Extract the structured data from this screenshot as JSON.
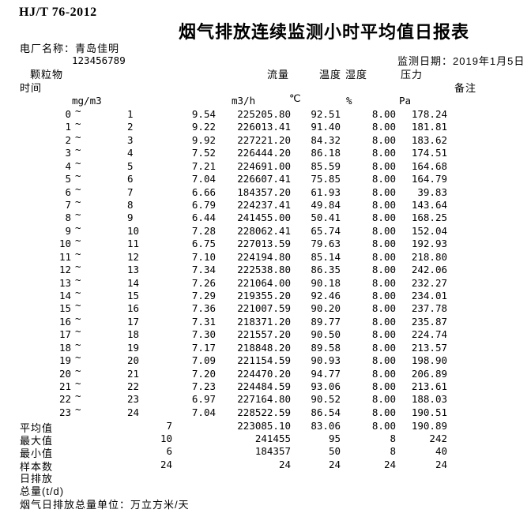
{
  "header": {
    "standard_code": "HJ/T 76-2012",
    "title": "烟气排放连续监测小时平均值日报表",
    "plant_name_label": "电厂名称：",
    "plant_name": "青岛佳明",
    "stray_mark": "`",
    "plant_code": "123456789",
    "monitor_date_label": "监测日期：",
    "monitor_date": "2019年1月5日"
  },
  "table": {
    "col_time": "时间",
    "col_pm": "颗粒物",
    "col_flow": "流量",
    "col_temp": "温度",
    "col_hum": "湿度",
    "col_press": "压力",
    "col_note": "备注",
    "unit_pm": "mg/m3",
    "unit_flow": "m3/h",
    "unit_temp": "℃",
    "unit_hum": "%",
    "unit_press": "Pa",
    "tilde": "~",
    "rows": [
      {
        "from": "0",
        "to": "1",
        "pm": "9.54",
        "flow": "225205.80",
        "temp": "92.51",
        "hum": "8.00",
        "press": "178.24"
      },
      {
        "from": "1",
        "to": "2",
        "pm": "9.22",
        "flow": "226013.41",
        "temp": "91.40",
        "hum": "8.00",
        "press": "181.81"
      },
      {
        "from": "2",
        "to": "3",
        "pm": "9.92",
        "flow": "227221.20",
        "temp": "84.32",
        "hum": "8.00",
        "press": "183.62"
      },
      {
        "from": "3",
        "to": "4",
        "pm": "7.52",
        "flow": "226444.20",
        "temp": "86.18",
        "hum": "8.00",
        "press": "174.51"
      },
      {
        "from": "4",
        "to": "5",
        "pm": "7.21",
        "flow": "224691.00",
        "temp": "85.59",
        "hum": "8.00",
        "press": "164.68"
      },
      {
        "from": "5",
        "to": "6",
        "pm": "7.04",
        "flow": "226607.41",
        "temp": "75.85",
        "hum": "8.00",
        "press": "164.79"
      },
      {
        "from": "6",
        "to": "7",
        "pm": "6.66",
        "flow": "184357.20",
        "temp": "61.93",
        "hum": "8.00",
        "press": "39.83"
      },
      {
        "from": "7",
        "to": "8",
        "pm": "6.79",
        "flow": "224237.41",
        "temp": "49.84",
        "hum": "8.00",
        "press": "143.64"
      },
      {
        "from": "8",
        "to": "9",
        "pm": "6.44",
        "flow": "241455.00",
        "temp": "50.41",
        "hum": "8.00",
        "press": "168.25"
      },
      {
        "from": "9",
        "to": "10",
        "pm": "7.28",
        "flow": "228062.41",
        "temp": "65.74",
        "hum": "8.00",
        "press": "152.04"
      },
      {
        "from": "10",
        "to": "11",
        "pm": "6.75",
        "flow": "227013.59",
        "temp": "79.63",
        "hum": "8.00",
        "press": "192.93"
      },
      {
        "from": "11",
        "to": "12",
        "pm": "7.10",
        "flow": "224194.80",
        "temp": "85.14",
        "hum": "8.00",
        "press": "218.80"
      },
      {
        "from": "12",
        "to": "13",
        "pm": "7.34",
        "flow": "222538.80",
        "temp": "86.35",
        "hum": "8.00",
        "press": "242.06"
      },
      {
        "from": "13",
        "to": "14",
        "pm": "7.26",
        "flow": "221064.00",
        "temp": "90.18",
        "hum": "8.00",
        "press": "232.27"
      },
      {
        "from": "14",
        "to": "15",
        "pm": "7.29",
        "flow": "219355.20",
        "temp": "92.46",
        "hum": "8.00",
        "press": "234.01"
      },
      {
        "from": "15",
        "to": "16",
        "pm": "7.36",
        "flow": "221007.59",
        "temp": "90.20",
        "hum": "8.00",
        "press": "237.78"
      },
      {
        "from": "16",
        "to": "17",
        "pm": "7.31",
        "flow": "218371.20",
        "temp": "89.77",
        "hum": "8.00",
        "press": "235.87"
      },
      {
        "from": "17",
        "to": "18",
        "pm": "7.30",
        "flow": "221557.20",
        "temp": "90.50",
        "hum": "8.00",
        "press": "224.74"
      },
      {
        "from": "18",
        "to": "19",
        "pm": "7.17",
        "flow": "218848.20",
        "temp": "89.58",
        "hum": "8.00",
        "press": "213.57"
      },
      {
        "from": "19",
        "to": "20",
        "pm": "7.09",
        "flow": "221154.59",
        "temp": "90.93",
        "hum": "8.00",
        "press": "198.90"
      },
      {
        "from": "20",
        "to": "21",
        "pm": "7.20",
        "flow": "224470.20",
        "temp": "94.77",
        "hum": "8.00",
        "press": "206.89"
      },
      {
        "from": "21",
        "to": "22",
        "pm": "7.23",
        "flow": "224484.59",
        "temp": "93.06",
        "hum": "8.00",
        "press": "213.61"
      },
      {
        "from": "22",
        "to": "23",
        "pm": "6.97",
        "flow": "227164.80",
        "temp": "90.52",
        "hum": "8.00",
        "press": "188.03"
      },
      {
        "from": "23",
        "to": "24",
        "pm": "7.04",
        "flow": "228522.59",
        "temp": "86.54",
        "hum": "8.00",
        "press": "190.51"
      }
    ],
    "summary_rows": [
      {
        "label": "平均值",
        "pm": "7",
        "flow": "223085.10",
        "temp": "83.06",
        "hum": "8.00",
        "press": "190.89"
      },
      {
        "label": "最大值",
        "pm": "10",
        "flow": "241455",
        "temp": "95",
        "hum": "8",
        "press": "242"
      },
      {
        "label": "最小值",
        "pm": "6",
        "flow": "184357",
        "temp": "50",
        "hum": "8",
        "press": "40"
      },
      {
        "label": "样本数",
        "pm": "24",
        "flow": "24",
        "temp": "24",
        "hum": "24",
        "press": "24"
      }
    ]
  },
  "footer": {
    "daily_emission_line1": "日排放",
    "daily_emission_line2": "总量(t/d)",
    "unit_note": "烟气日排放总量单位：万立方米/天"
  },
  "colors": {
    "text": "#000000",
    "background": "#ffffff"
  }
}
